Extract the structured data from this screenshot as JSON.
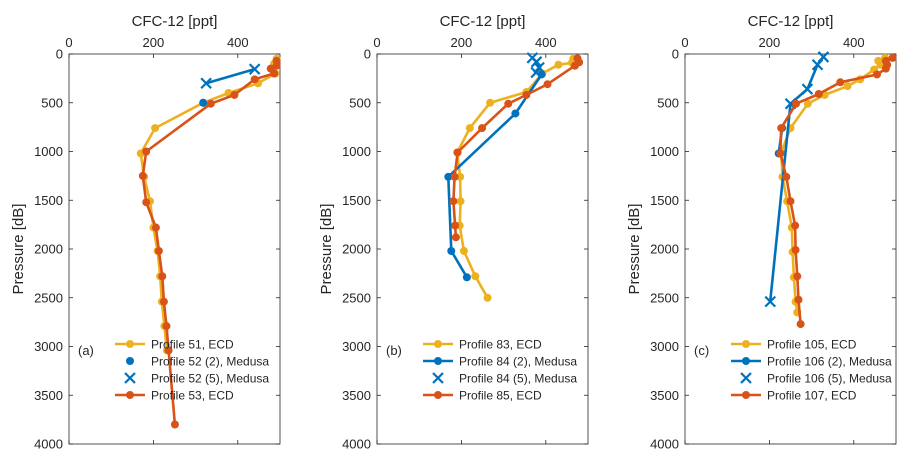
{
  "colors": {
    "ecd": "#EDB120",
    "medusa": "#0072BD",
    "ecd2": "#D95319",
    "axis": "#262626"
  },
  "chart_data": [
    {
      "type": "line",
      "panel_label": "(a)",
      "xlabel": "CFC-12 [ppt]",
      "ylabel": "Pressure [dB]",
      "xlim": [
        0,
        500
      ],
      "ylim": [
        4000,
        0
      ],
      "x_ticks": [
        0,
        200,
        400
      ],
      "y_ticks": [
        0,
        500,
        1000,
        1500,
        2000,
        2500,
        3000,
        3500,
        4000
      ],
      "y_reversed": true,
      "x_axis_position": "top",
      "legend_position": "bottom-right",
      "series": [
        {
          "name": "Profile 51, ECD",
          "color": "#EDB120",
          "marker": "circle",
          "line": true,
          "points": [
            [
              492,
              50
            ],
            [
              486,
              100
            ],
            [
              489,
              200
            ],
            [
              448,
              300
            ],
            [
              378,
              400
            ],
            [
              318,
              500
            ],
            [
              204,
              760
            ],
            [
              170,
              1020
            ],
            [
              178,
              1260
            ],
            [
              192,
              1510
            ],
            [
              200,
              1780
            ],
            [
              210,
              2020
            ],
            [
              216,
              2280
            ],
            [
              220,
              2540
            ],
            [
              226,
              2790
            ],
            [
              232,
              3040
            ]
          ]
        },
        {
          "name": "Profile 52 (2), Medusa",
          "color": "#0072BD",
          "marker": "circle",
          "line": false,
          "points": [
            [
              318,
              500
            ]
          ]
        },
        {
          "name": "Profile 52 (5), Medusa",
          "color": "#0072BD",
          "marker": "x",
          "line": true,
          "points": [
            [
              440,
              155
            ],
            [
              325,
              300
            ]
          ]
        },
        {
          "name": "Profile 53, ECD",
          "color": "#D95319",
          "marker": "circle",
          "line": true,
          "points": [
            [
              492,
              70
            ],
            [
              492,
              120
            ],
            [
              478,
              150
            ],
            [
              486,
              200
            ],
            [
              440,
              260
            ],
            [
              392,
              420
            ],
            [
              336,
              510
            ],
            [
              183,
              1000
            ],
            [
              175,
              1250
            ],
            [
              183,
              1520
            ],
            [
              206,
              1780
            ],
            [
              213,
              2020
            ],
            [
              221,
              2280
            ],
            [
              225,
              2540
            ],
            [
              231,
              2790
            ],
            [
              236,
              3040
            ],
            [
              251,
              3800
            ]
          ]
        }
      ]
    },
    {
      "type": "line",
      "panel_label": "(b)",
      "xlabel": "CFC-12 [ppt]",
      "ylabel": "Pressure [dB]",
      "xlim": [
        0,
        500
      ],
      "ylim": [
        4000,
        0
      ],
      "x_ticks": [
        0,
        200,
        400
      ],
      "y_ticks": [
        0,
        500,
        1000,
        1500,
        2000,
        2500,
        3000,
        3500,
        4000
      ],
      "y_reversed": true,
      "x_axis_position": "top",
      "legend_position": "bottom-right",
      "series": [
        {
          "name": "Profile 83, ECD",
          "color": "#EDB120",
          "marker": "circle",
          "line": true,
          "points": [
            [
              465,
              50
            ],
            [
              462,
              90
            ],
            [
              430,
              110
            ],
            [
              392,
              200
            ],
            [
              354,
              390
            ],
            [
              268,
              500
            ],
            [
              220,
              760
            ],
            [
              190,
              1010
            ],
            [
              197,
              1260
            ],
            [
              198,
              1510
            ],
            [
              196,
              1760
            ],
            [
              206,
              2020
            ],
            [
              233,
              2280
            ],
            [
              262,
              2500
            ]
          ]
        },
        {
          "name": "Profile 84 (2), Medusa",
          "color": "#0072BD",
          "marker": "circle",
          "line": true,
          "points": [
            [
              390,
              210
            ],
            [
              328,
              610
            ],
            [
              169,
              1260
            ],
            [
              176,
              2020
            ],
            [
              213,
              2290
            ]
          ]
        },
        {
          "name": "Profile 84 (5), Medusa",
          "color": "#0072BD",
          "marker": "x",
          "line": true,
          "points": [
            [
              368,
              40
            ],
            [
              378,
              80
            ],
            [
              384,
              140
            ],
            [
              377,
              190
            ]
          ]
        },
        {
          "name": "Profile 85, ECD",
          "color": "#D95319",
          "marker": "circle",
          "line": true,
          "points": [
            [
              475,
              45
            ],
            [
              479,
              85
            ],
            [
              469,
              120
            ],
            [
              404,
              310
            ],
            [
              354,
              420
            ],
            [
              311,
              510
            ],
            [
              249,
              760
            ],
            [
              191,
              1010
            ],
            [
              184,
              1260
            ],
            [
              181,
              1510
            ],
            [
              185,
              1760
            ],
            [
              187,
              1880
            ]
          ]
        }
      ]
    },
    {
      "type": "line",
      "panel_label": "(c)",
      "xlabel": "CFC-12 [ppt]",
      "ylabel": "Pressure [dB]",
      "xlim": [
        0,
        500
      ],
      "ylim": [
        4000,
        0
      ],
      "x_ticks": [
        0,
        200,
        400
      ],
      "y_ticks": [
        0,
        500,
        1000,
        1500,
        2000,
        2500,
        3000,
        3500,
        4000
      ],
      "y_reversed": true,
      "x_axis_position": "top",
      "legend_position": "bottom-right",
      "series": [
        {
          "name": "Profile 105, ECD",
          "color": "#EDB120",
          "marker": "circle",
          "line": true,
          "points": [
            [
              474,
              40
            ],
            [
              458,
              70
            ],
            [
              463,
              110
            ],
            [
              448,
              160
            ],
            [
              415,
              260
            ],
            [
              385,
              330
            ],
            [
              331,
              420
            ],
            [
              291,
              510
            ],
            [
              250,
              760
            ],
            [
              228,
              1010
            ],
            [
              231,
              1260
            ],
            [
              242,
              1510
            ],
            [
              253,
              1780
            ],
            [
              255,
              2030
            ],
            [
              258,
              2290
            ],
            [
              262,
              2540
            ],
            [
              266,
              2650
            ]
          ]
        },
        {
          "name": "Profile 106 (2), Medusa",
          "color": "#0072BD",
          "marker": "circle",
          "line": true,
          "points": [
            [
              230,
              760
            ],
            [
              222,
              1020
            ]
          ]
        },
        {
          "name": "Profile 106 (5), Medusa",
          "color": "#0072BD",
          "marker": "x",
          "line": true,
          "points": [
            [
              328,
              30
            ],
            [
              314,
              110
            ],
            [
              290,
              360
            ],
            [
              250,
              510
            ],
            [
              202,
              2540
            ]
          ]
        },
        {
          "name": "Profile 107, ECD",
          "color": "#D95319",
          "marker": "circle",
          "line": true,
          "points": [
            [
              492,
              40
            ],
            [
              476,
              70
            ],
            [
              479,
              110
            ],
            [
              476,
              150
            ],
            [
              455,
              210
            ],
            [
              368,
              290
            ],
            [
              317,
              410
            ],
            [
              263,
              510
            ],
            [
              228,
              760
            ],
            [
              226,
              1020
            ],
            [
              240,
              1260
            ],
            [
              250,
              1510
            ],
            [
              261,
              1760
            ],
            [
              262,
              2010
            ],
            [
              266,
              2280
            ],
            [
              269,
              2520
            ],
            [
              274,
              2770
            ]
          ]
        }
      ]
    }
  ]
}
